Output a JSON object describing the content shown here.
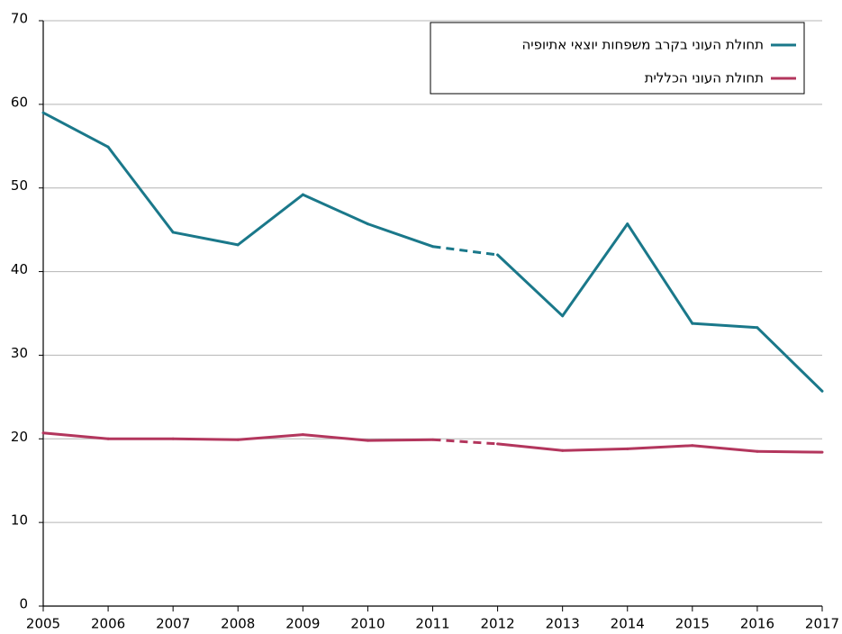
{
  "chart_data": {
    "type": "line",
    "x": [
      2005,
      2006,
      2007,
      2008,
      2009,
      2010,
      2011,
      2012,
      2013,
      2014,
      2015,
      2016,
      2017
    ],
    "series": [
      {
        "name": "תחולת העוני בקרב משפחות יוצאי אתיופיה",
        "color": "#1a788a",
        "values": [
          59.0,
          54.9,
          44.7,
          43.2,
          49.2,
          45.7,
          43.0,
          42.0,
          34.7,
          45.7,
          33.8,
          33.3,
          25.7
        ]
      },
      {
        "name": "תחולת העוני הכללית",
        "color": "#b3365d",
        "values": [
          20.7,
          20.0,
          20.0,
          19.9,
          20.5,
          19.8,
          19.9,
          19.4,
          18.6,
          18.8,
          19.2,
          18.5,
          18.4
        ]
      }
    ],
    "dashed_between": [
      2011,
      2012
    ],
    "xlim": [
      2005,
      2017
    ],
    "xticks": [
      2005,
      2006,
      2007,
      2008,
      2009,
      2010,
      2011,
      2012,
      2013,
      2014,
      2015,
      2016,
      2017
    ],
    "ylim": [
      0,
      70
    ],
    "yticks": [
      0,
      10,
      20,
      30,
      40,
      50,
      60,
      70
    ],
    "grid": true,
    "legend": "top-right"
  }
}
